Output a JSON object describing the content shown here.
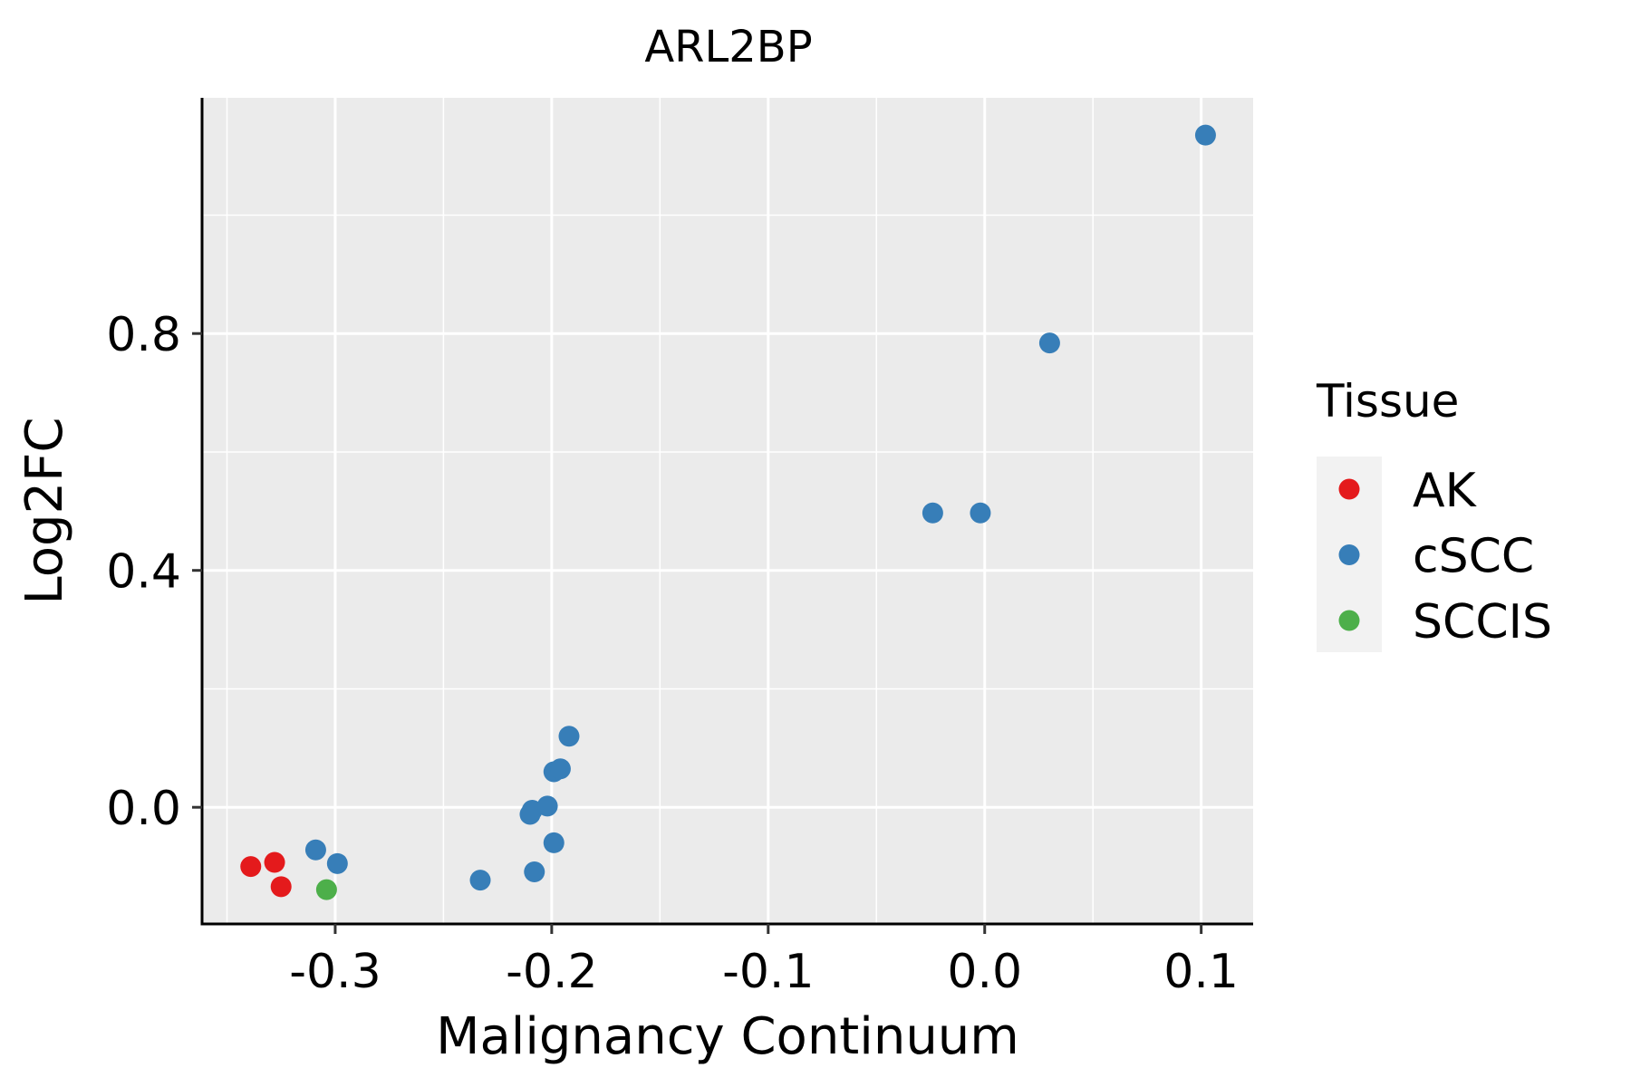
{
  "chart_data": {
    "type": "scatter",
    "title": "ARL2BP",
    "xlabel": "Malignancy Continuum",
    "ylabel": "Log2FC",
    "xlim": [
      -0.3615,
      0.124
    ],
    "ylim": [
      -0.197,
      1.198
    ],
    "x_ticks": [
      -0.3,
      -0.2,
      -0.1,
      0.0,
      0.1
    ],
    "x_tick_labels": [
      "-0.3",
      "-0.2",
      "-0.1",
      "0.0",
      "0.1"
    ],
    "y_ticks": [
      0.0,
      0.4,
      0.8
    ],
    "y_tick_labels": [
      "0.0",
      "0.4",
      "0.8"
    ],
    "grid": true,
    "legend": {
      "title": "Tissue",
      "position": "right"
    },
    "series": [
      {
        "name": "AK",
        "color": "#E41A1C",
        "points": [
          [
            -0.339,
            -0.1
          ],
          [
            -0.328,
            -0.093
          ],
          [
            -0.325,
            -0.134
          ]
        ]
      },
      {
        "name": "cSCC",
        "color": "#377EB8",
        "points": [
          [
            -0.309,
            -0.072
          ],
          [
            -0.299,
            -0.095
          ],
          [
            -0.233,
            -0.123
          ],
          [
            -0.208,
            -0.109
          ],
          [
            -0.21,
            -0.012
          ],
          [
            -0.209,
            -0.005
          ],
          [
            -0.202,
            0.002
          ],
          [
            -0.199,
            -0.06
          ],
          [
            -0.199,
            0.06
          ],
          [
            -0.196,
            0.065
          ],
          [
            -0.192,
            0.12
          ],
          [
            -0.024,
            0.497
          ],
          [
            -0.002,
            0.497
          ],
          [
            0.03,
            0.784
          ],
          [
            0.102,
            1.135
          ]
        ]
      },
      {
        "name": "SCCIS",
        "color": "#4DAF4A",
        "points": [
          [
            -0.304,
            -0.139
          ]
        ]
      }
    ]
  }
}
